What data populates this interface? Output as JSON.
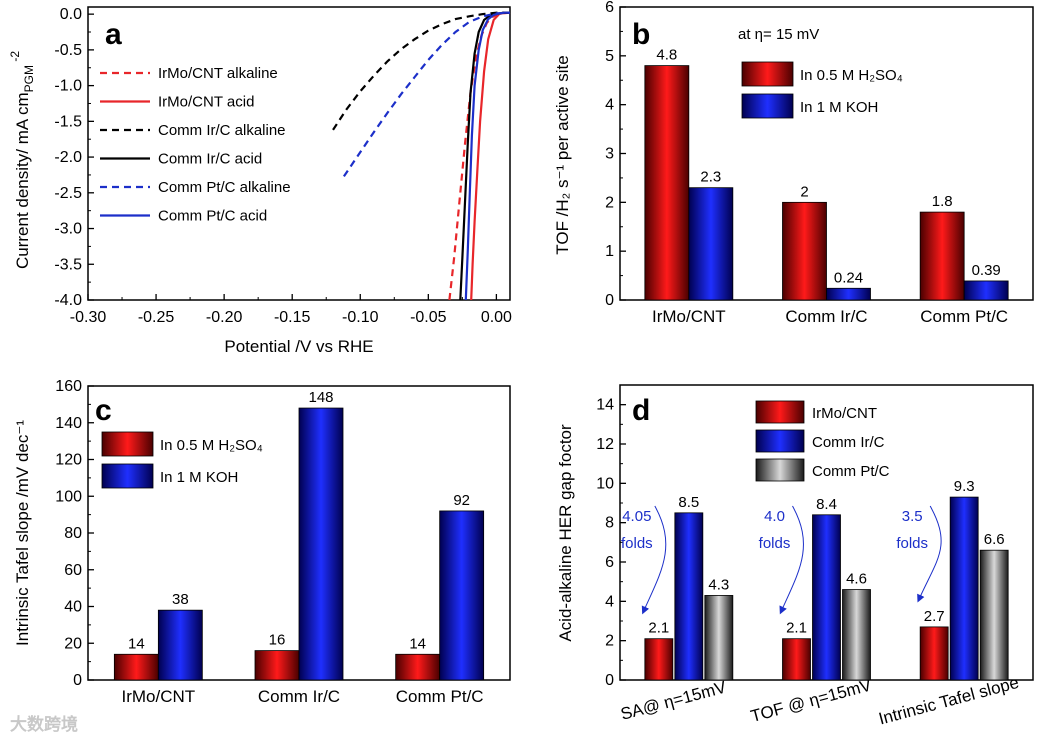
{
  "watermark": "大数跨境",
  "chart_data": [
    {
      "panel": "a",
      "type": "line",
      "xlabel": "Potential /V vs RHE",
      "ylabel_main": "Current density/ mA cm",
      "ylabel_sub": "PGM",
      "ylabel_sup": "-2",
      "xlim": [
        -0.3,
        0.01
      ],
      "ylim": [
        -4.0,
        0.1
      ],
      "xticks": [
        "-0.30",
        "-0.25",
        "-0.20",
        "-0.15",
        "-0.10",
        "-0.05",
        "0.00"
      ],
      "xtick_values": [
        -0.3,
        -0.25,
        -0.2,
        -0.15,
        -0.1,
        -0.05,
        0.0
      ],
      "yticks": [
        "0.0",
        "-0.5",
        "-1.0",
        "-1.5",
        "-2.0",
        "-2.5",
        "-3.0",
        "-3.5",
        "-4.0"
      ],
      "ytick_values": [
        0.0,
        -0.5,
        -1.0,
        -1.5,
        -2.0,
        -2.5,
        -3.0,
        -3.5,
        -4.0
      ],
      "series": [
        {
          "name": "IrMo/CNT alkaline",
          "color": "#e8262a",
          "dash": true,
          "x": [
            -0.0345,
            -0.031,
            -0.027,
            -0.023,
            -0.019,
            -0.015,
            -0.011,
            -0.007,
            -0.003,
            0.0,
            0.004,
            0.01
          ],
          "y": [
            -4.0,
            -3.4,
            -2.6,
            -1.8,
            -1.1,
            -0.6,
            -0.3,
            -0.12,
            -0.04,
            -0.01,
            0.01,
            0.02
          ]
        },
        {
          "name": "IrMo/CNT acid",
          "color": "#e8262a",
          "dash": false,
          "x": [
            -0.0185,
            -0.0175,
            -0.016,
            -0.014,
            -0.012,
            -0.009,
            -0.006,
            -0.002,
            0.002,
            0.006,
            0.01
          ],
          "y": [
            -4.0,
            -3.5,
            -2.9,
            -2.2,
            -1.5,
            -0.8,
            -0.35,
            -0.08,
            0.0,
            0.02,
            0.02
          ]
        },
        {
          "name": "Comm Ir/C alkaline",
          "color": "#000000",
          "dash": true,
          "x": [
            -0.12,
            -0.11,
            -0.1,
            -0.09,
            -0.08,
            -0.07,
            -0.06,
            -0.05,
            -0.04,
            -0.03,
            -0.02,
            -0.01,
            0.0,
            0.01
          ],
          "y": [
            -1.62,
            -1.33,
            -1.08,
            -0.86,
            -0.66,
            -0.49,
            -0.35,
            -0.23,
            -0.14,
            -0.07,
            -0.03,
            0.0,
            0.02,
            0.02
          ]
        },
        {
          "name": "Comm Ir/C acid",
          "color": "#000000",
          "dash": false,
          "x": [
            -0.0265,
            -0.025,
            -0.023,
            -0.021,
            -0.019,
            -0.016,
            -0.013,
            -0.009,
            -0.005,
            0.0,
            0.005,
            0.01
          ],
          "y": [
            -4.0,
            -3.4,
            -2.6,
            -1.8,
            -1.1,
            -0.55,
            -0.25,
            -0.08,
            -0.02,
            0.0,
            0.02,
            0.02
          ]
        },
        {
          "name": "Comm Pt/C alkaline",
          "color": "#1c2fc9",
          "dash": true,
          "x": [
            -0.112,
            -0.1,
            -0.09,
            -0.08,
            -0.07,
            -0.06,
            -0.05,
            -0.04,
            -0.03,
            -0.02,
            -0.01,
            0.0,
            0.01
          ],
          "y": [
            -2.27,
            -1.93,
            -1.65,
            -1.38,
            -1.12,
            -0.88,
            -0.64,
            -0.43,
            -0.25,
            -0.11,
            -0.03,
            0.01,
            0.02
          ]
        },
        {
          "name": "Comm Pt/C acid",
          "color": "#1c2fc9",
          "dash": false,
          "x": [
            -0.0225,
            -0.021,
            -0.0195,
            -0.018,
            -0.016,
            -0.013,
            -0.01,
            -0.006,
            -0.002,
            0.002,
            0.006,
            0.01
          ],
          "y": [
            -4.0,
            -3.3,
            -2.5,
            -1.7,
            -1.0,
            -0.5,
            -0.22,
            -0.07,
            -0.01,
            0.01,
            0.02,
            0.02
          ]
        }
      ]
    },
    {
      "panel": "b",
      "type": "bar",
      "ylabel": "TOF /H₂ s⁻¹ per active site",
      "annotation": "at η= 15 mV",
      "ylim": [
        0,
        6
      ],
      "yticks": [
        "0",
        "1",
        "2",
        "3",
        "4",
        "5",
        "6"
      ],
      "ytick_values": [
        0,
        1,
        2,
        3,
        4,
        5,
        6
      ],
      "categories": [
        "IrMo/CNT",
        "Comm Ir/C",
        "Comm Pt/C"
      ],
      "series": [
        {
          "name": "In 0.5 M H₂SO₄",
          "color": "#e8262a",
          "values": [
            4.8,
            2,
            1.8
          ],
          "labels": [
            "4.8",
            "2",
            "1.8"
          ]
        },
        {
          "name": "In 1 M KOH",
          "color": "#1c2fc9",
          "values": [
            2.3,
            0.24,
            0.39
          ],
          "labels": [
            "2.3",
            "0.24",
            "0.39"
          ]
        }
      ]
    },
    {
      "panel": "c",
      "type": "bar",
      "ylabel": "Intrinsic Tafel slope /mV dec⁻¹",
      "ylim": [
        0,
        160
      ],
      "yticks": [
        "0",
        "20",
        "40",
        "60",
        "80",
        "100",
        "120",
        "140",
        "160"
      ],
      "ytick_values": [
        0,
        20,
        40,
        60,
        80,
        100,
        120,
        140,
        160
      ],
      "categories": [
        "IrMo/CNT",
        "Comm Ir/C",
        "Comm Pt/C"
      ],
      "series": [
        {
          "name": "In 0.5 M H₂SO₄",
          "color": "#e8262a",
          "values": [
            14,
            16,
            14
          ],
          "labels": [
            "14",
            "16",
            "14"
          ]
        },
        {
          "name": "In 1 M KOH",
          "color": "#1c2fc9",
          "values": [
            38,
            148,
            92
          ],
          "labels": [
            "38",
            "148",
            "92"
          ]
        }
      ]
    },
    {
      "panel": "d",
      "type": "bar",
      "ylabel": "Acid-alkaline HER gap foctor",
      "ylim": [
        0,
        15
      ],
      "yticks": [
        "0",
        "2",
        "4",
        "6",
        "8",
        "10",
        "12",
        "14"
      ],
      "ytick_values": [
        0,
        2,
        4,
        6,
        8,
        10,
        12,
        14
      ],
      "categories": [
        "SA@ η=15mV",
        "TOF @ η=15mV",
        "Intrinsic Tafel slope"
      ],
      "series": [
        {
          "name": "IrMo/CNT",
          "color": "#e8262a",
          "values": [
            2.1,
            2.1,
            2.7
          ],
          "labels": [
            "2.1",
            "2.1",
            "2.7"
          ]
        },
        {
          "name": "Comm Ir/C",
          "color": "#1c2fc9",
          "values": [
            8.5,
            8.4,
            9.3
          ],
          "labels": [
            "8.5",
            "8.4",
            "9.3"
          ]
        },
        {
          "name": "Comm Pt/C",
          "color": "#808080",
          "values": [
            4.3,
            4.6,
            6.6
          ],
          "labels": [
            "4.3",
            "4.6",
            "6.6"
          ]
        }
      ],
      "annotations": [
        {
          "value": "4.05",
          "unit": "folds"
        },
        {
          "value": "4.0",
          "unit": "folds"
        },
        {
          "value": "3.5",
          "unit": "folds"
        }
      ],
      "annotation_color": "#1c2fc9"
    }
  ]
}
